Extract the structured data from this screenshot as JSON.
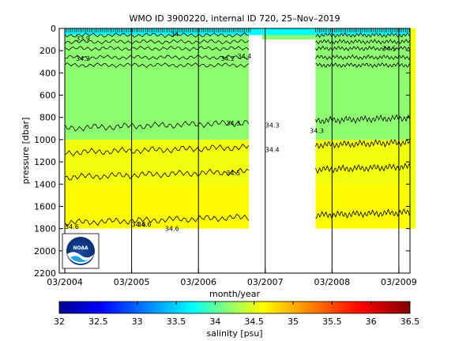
{
  "chart_data": {
    "type": "heatmap",
    "title": "WMO ID 3900220, internal ID 720, 25–Nov–2019",
    "xlabel": "month/year",
    "ylabel": "pressure [dbar]",
    "x_ticks": [
      "03/2004",
      "03/2005",
      "03/2006",
      "03/2007",
      "03/2008",
      "03/2009"
    ],
    "y_ticks": [
      "0",
      "200",
      "400",
      "600",
      "800",
      "1000",
      "1200",
      "1400",
      "1600",
      "1800",
      "2000",
      "2200"
    ],
    "ylim": [
      2200,
      0
    ],
    "x_range_months": [
      "02/2004",
      "05/2009"
    ],
    "colorbar": {
      "label": "salinity [psu]",
      "ticks": [
        "32",
        "32.5",
        "33",
        "33.5",
        "34",
        "34.5",
        "35",
        "35.5",
        "36",
        "36.5"
      ],
      "range": [
        32,
        36.5
      ]
    },
    "contour_labels": [
      {
        "text": "34.3",
        "date": "2006-08",
        "pressure": 850
      },
      {
        "text": "34.3",
        "date": "2007-03",
        "pressure": 870
      },
      {
        "text": "34.4",
        "date": "2007-03",
        "pressure": 1090
      },
      {
        "text": "34.5",
        "date": "2006-08",
        "pressure": 1300
      },
      {
        "text": "34.3",
        "date": "2007-11",
        "pressure": 920
      },
      {
        "text": "34.6",
        "date": "2004-03",
        "pressure": 1780
      },
      {
        "text": "34.6",
        "date": "2005-03",
        "pressure": 1760
      },
      {
        "text": "34.6",
        "date": "2005-09",
        "pressure": 1800
      },
      {
        "text": "34.6",
        "date": "2005-04",
        "pressure": 1760
      },
      {
        "text": "33.9",
        "date": "2004-05",
        "pressure": 90
      },
      {
        "text": "34.2",
        "date": "2004-05",
        "pressure": 270
      },
      {
        "text": "34",
        "date": "2005-10",
        "pressure": 50
      },
      {
        "text": "34.4",
        "date": "2006-10",
        "pressure": 250
      },
      {
        "text": "34.2",
        "date": "2006-07",
        "pressure": 270
      },
      {
        "text": "34.5",
        "date": "2008-12",
        "pressure": 180
      }
    ],
    "salinity_layers": [
      {
        "top": 0,
        "bottom": 60,
        "salinity": 33.7
      },
      {
        "top": 60,
        "bottom": 1000,
        "salinity": 34.2
      },
      {
        "top": 1000,
        "bottom": 1400,
        "salinity": 34.55
      },
      {
        "top": 1400,
        "bottom": 1800,
        "salinity": 34.62
      }
    ],
    "grid": true
  },
  "logo_text": "NOAA"
}
